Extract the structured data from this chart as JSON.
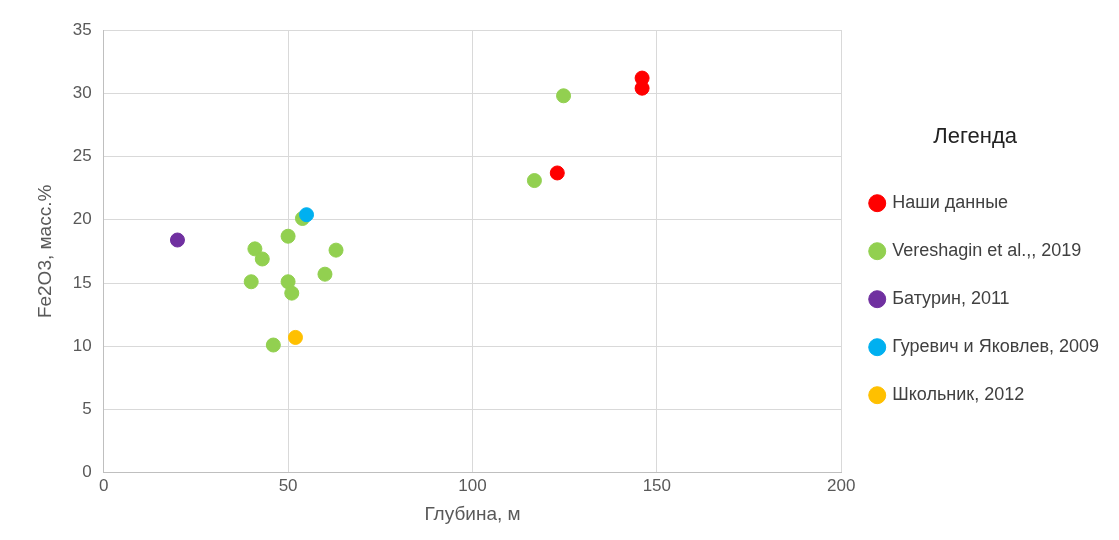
{
  "chart_data": {
    "type": "scatter",
    "xlabel": "Глубина, м",
    "ylabel": "Fe2O3, масс.%",
    "legend_title": "Легенда",
    "legend": "right",
    "grid": true,
    "marker": "circle",
    "xlim": [
      0,
      200
    ],
    "xticks": [
      0,
      50,
      100,
      150,
      200
    ],
    "ylim": [
      0,
      35
    ],
    "yticks": [
      0,
      5,
      10,
      15,
      20,
      25,
      30,
      35
    ],
    "series": [
      {
        "name": "Наши данные",
        "color": "#ff0000",
        "x": [
          146,
          146,
          123
        ],
        "values": [
          31.2,
          30.4,
          23.7
        ]
      },
      {
        "name": "Vereshagin et al.,, 2019",
        "color": "#92d050",
        "x": [
          124.7,
          116.8,
          53.9,
          50,
          41,
          43,
          63,
          40,
          50,
          51,
          60,
          46
        ],
        "values": [
          29.8,
          23.1,
          20.1,
          18.7,
          17.7,
          16.9,
          17.6,
          15.1,
          15.1,
          14.2,
          15.7,
          10.1
        ]
      },
      {
        "name": "Батурин, 2011",
        "color": "#7030a0",
        "x": [
          20
        ],
        "values": [
          18.4
        ]
      },
      {
        "name": "Гуревич и Яковлев, 2009",
        "color": "#00b0f0",
        "x": [
          55
        ],
        "values": [
          20.4
        ]
      },
      {
        "name": "Школьник, 2012",
        "color": "#ffc000",
        "x": [
          52
        ],
        "values": [
          10.7
        ]
      }
    ]
  }
}
